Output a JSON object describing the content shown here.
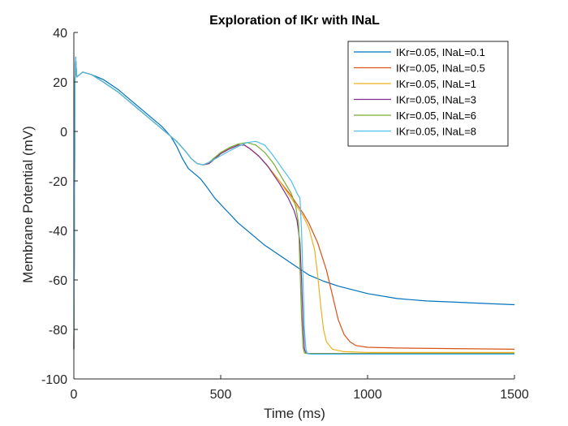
{
  "chart_data": {
    "type": "line",
    "title": "Exploration of IKr with INaL",
    "xlabel": "Time (ms)",
    "ylabel": "Membrane Potential (mV)",
    "xlim": [
      0,
      1500
    ],
    "ylim": [
      -100,
      40
    ],
    "xticks": [
      0,
      500,
      1000,
      1500
    ],
    "yticks": [
      -100,
      -80,
      -60,
      -40,
      -20,
      0,
      20,
      40
    ],
    "grid": false,
    "legend_position": "top-right",
    "series": [
      {
        "name": "IKr=0.05, INaL=0.1",
        "color": "#0072BD",
        "points": [
          [
            0,
            -88
          ],
          [
            2,
            -40
          ],
          [
            4,
            20
          ],
          [
            6,
            30
          ],
          [
            10,
            22
          ],
          [
            20,
            23
          ],
          [
            30,
            24
          ],
          [
            60,
            23
          ],
          [
            100,
            21
          ],
          [
            150,
            17
          ],
          [
            200,
            12
          ],
          [
            250,
            7
          ],
          [
            300,
            2
          ],
          [
            330,
            -2
          ],
          [
            350,
            -6
          ],
          [
            370,
            -11
          ],
          [
            390,
            -15
          ],
          [
            410,
            -17
          ],
          [
            430,
            -19
          ],
          [
            450,
            -22
          ],
          [
            480,
            -27
          ],
          [
            520,
            -32
          ],
          [
            560,
            -37
          ],
          [
            600,
            -41
          ],
          [
            650,
            -46
          ],
          [
            700,
            -50
          ],
          [
            750,
            -54
          ],
          [
            800,
            -58
          ],
          [
            850,
            -60.5
          ],
          [
            900,
            -62.5
          ],
          [
            950,
            -64
          ],
          [
            1000,
            -65.5
          ],
          [
            1100,
            -67.5
          ],
          [
            1200,
            -68.5
          ],
          [
            1300,
            -69
          ],
          [
            1400,
            -69.5
          ],
          [
            1500,
            -70
          ]
        ]
      },
      {
        "name": "IKr=0.05, INaL=0.5",
        "color": "#D95319",
        "points": [
          [
            0,
            -88
          ],
          [
            2,
            -40
          ],
          [
            4,
            20
          ],
          [
            6,
            30
          ],
          [
            10,
            22
          ],
          [
            20,
            23
          ],
          [
            30,
            24
          ],
          [
            60,
            23
          ],
          [
            100,
            20
          ],
          [
            150,
            16
          ],
          [
            200,
            11
          ],
          [
            250,
            6
          ],
          [
            300,
            1
          ],
          [
            350,
            -4
          ],
          [
            380,
            -8
          ],
          [
            400,
            -11
          ],
          [
            420,
            -13
          ],
          [
            440,
            -13.5
          ],
          [
            460,
            -13
          ],
          [
            480,
            -11
          ],
          [
            500,
            -9
          ],
          [
            530,
            -7
          ],
          [
            560,
            -5.5
          ],
          [
            580,
            -5.5
          ],
          [
            600,
            -7
          ],
          [
            630,
            -10
          ],
          [
            660,
            -14
          ],
          [
            700,
            -20
          ],
          [
            740,
            -26
          ],
          [
            780,
            -33
          ],
          [
            800,
            -37
          ],
          [
            830,
            -45
          ],
          [
            860,
            -56
          ],
          [
            880,
            -66
          ],
          [
            900,
            -76
          ],
          [
            920,
            -82
          ],
          [
            940,
            -85
          ],
          [
            960,
            -86.5
          ],
          [
            1000,
            -87.2
          ],
          [
            1100,
            -87.5
          ],
          [
            1500,
            -88
          ]
        ]
      },
      {
        "name": "IKr=0.05, INaL=1",
        "color": "#EDB120",
        "points": [
          [
            0,
            -88
          ],
          [
            2,
            -40
          ],
          [
            4,
            20
          ],
          [
            6,
            30
          ],
          [
            10,
            22
          ],
          [
            20,
            23
          ],
          [
            30,
            24
          ],
          [
            60,
            23
          ],
          [
            100,
            20
          ],
          [
            150,
            16
          ],
          [
            200,
            11
          ],
          [
            250,
            6
          ],
          [
            300,
            1
          ],
          [
            350,
            -4
          ],
          [
            380,
            -8
          ],
          [
            400,
            -11
          ],
          [
            420,
            -13
          ],
          [
            440,
            -13.5
          ],
          [
            460,
            -13
          ],
          [
            480,
            -11
          ],
          [
            500,
            -9
          ],
          [
            530,
            -7
          ],
          [
            560,
            -5.5
          ],
          [
            580,
            -5.5
          ],
          [
            600,
            -7
          ],
          [
            630,
            -10
          ],
          [
            660,
            -14
          ],
          [
            700,
            -20
          ],
          [
            740,
            -27
          ],
          [
            780,
            -34
          ],
          [
            800,
            -39
          ],
          [
            820,
            -48
          ],
          [
            830,
            -58
          ],
          [
            840,
            -70
          ],
          [
            850,
            -80
          ],
          [
            860,
            -85
          ],
          [
            880,
            -88
          ],
          [
            920,
            -89
          ],
          [
            1000,
            -89.3
          ],
          [
            1500,
            -89.3
          ]
        ]
      },
      {
        "name": "IKr=0.05, INaL=3",
        "color": "#7E2F8E",
        "points": [
          [
            0,
            -88
          ],
          [
            2,
            -40
          ],
          [
            4,
            20
          ],
          [
            6,
            30
          ],
          [
            10,
            22
          ],
          [
            20,
            23
          ],
          [
            30,
            24
          ],
          [
            60,
            23
          ],
          [
            100,
            20
          ],
          [
            150,
            16
          ],
          [
            200,
            11
          ],
          [
            250,
            6
          ],
          [
            300,
            1
          ],
          [
            350,
            -4
          ],
          [
            380,
            -8
          ],
          [
            400,
            -11
          ],
          [
            420,
            -13
          ],
          [
            440,
            -13.5
          ],
          [
            460,
            -13
          ],
          [
            480,
            -11
          ],
          [
            500,
            -9
          ],
          [
            530,
            -7
          ],
          [
            560,
            -5.5
          ],
          [
            580,
            -5.5
          ],
          [
            600,
            -7
          ],
          [
            630,
            -10
          ],
          [
            660,
            -14
          ],
          [
            700,
            -21
          ],
          [
            730,
            -27
          ],
          [
            750,
            -32
          ],
          [
            760,
            -36
          ],
          [
            770,
            -45
          ],
          [
            775,
            -60
          ],
          [
            780,
            -78
          ],
          [
            785,
            -88
          ],
          [
            790,
            -89.5
          ],
          [
            800,
            -89.7
          ],
          [
            1500,
            -89.7
          ]
        ]
      },
      {
        "name": "IKr=0.05, INaL=6",
        "color": "#77AC30",
        "points": [
          [
            0,
            -88
          ],
          [
            2,
            -40
          ],
          [
            4,
            20
          ],
          [
            6,
            30
          ],
          [
            10,
            22
          ],
          [
            20,
            23
          ],
          [
            30,
            24
          ],
          [
            60,
            23
          ],
          [
            100,
            20
          ],
          [
            150,
            16
          ],
          [
            200,
            11
          ],
          [
            250,
            6
          ],
          [
            300,
            1
          ],
          [
            350,
            -4
          ],
          [
            380,
            -8
          ],
          [
            400,
            -11
          ],
          [
            420,
            -13
          ],
          [
            440,
            -13.5
          ],
          [
            460,
            -12.5
          ],
          [
            480,
            -10.5
          ],
          [
            500,
            -8.5
          ],
          [
            530,
            -6.5
          ],
          [
            560,
            -5
          ],
          [
            590,
            -4.5
          ],
          [
            620,
            -5.5
          ],
          [
            650,
            -8.5
          ],
          [
            680,
            -13
          ],
          [
            710,
            -19
          ],
          [
            740,
            -25
          ],
          [
            755,
            -30
          ],
          [
            765,
            -37
          ],
          [
            770,
            -55
          ],
          [
            775,
            -75
          ],
          [
            780,
            -87
          ],
          [
            785,
            -89.5
          ],
          [
            800,
            -89.8
          ],
          [
            1500,
            -89.8
          ]
        ]
      },
      {
        "name": "IKr=0.05, INaL=8",
        "color": "#4DBEEE",
        "points": [
          [
            0,
            -88
          ],
          [
            2,
            -40
          ],
          [
            4,
            20
          ],
          [
            6,
            30
          ],
          [
            10,
            22
          ],
          [
            20,
            23
          ],
          [
            30,
            24
          ],
          [
            60,
            23
          ],
          [
            100,
            20
          ],
          [
            150,
            16
          ],
          [
            200,
            11
          ],
          [
            250,
            6
          ],
          [
            300,
            1
          ],
          [
            350,
            -4
          ],
          [
            380,
            -8
          ],
          [
            400,
            -11
          ],
          [
            420,
            -13
          ],
          [
            440,
            -13.5
          ],
          [
            460,
            -12.5
          ],
          [
            490,
            -10.5
          ],
          [
            520,
            -8.5
          ],
          [
            560,
            -6
          ],
          [
            590,
            -4.5
          ],
          [
            620,
            -4
          ],
          [
            650,
            -5.5
          ],
          [
            680,
            -10
          ],
          [
            710,
            -15
          ],
          [
            740,
            -20
          ],
          [
            760,
            -25
          ],
          [
            770,
            -27
          ],
          [
            775,
            -40
          ],
          [
            780,
            -60
          ],
          [
            785,
            -80
          ],
          [
            790,
            -88
          ],
          [
            795,
            -89.8
          ],
          [
            810,
            -90
          ],
          [
            1500,
            -90
          ]
        ]
      }
    ]
  }
}
